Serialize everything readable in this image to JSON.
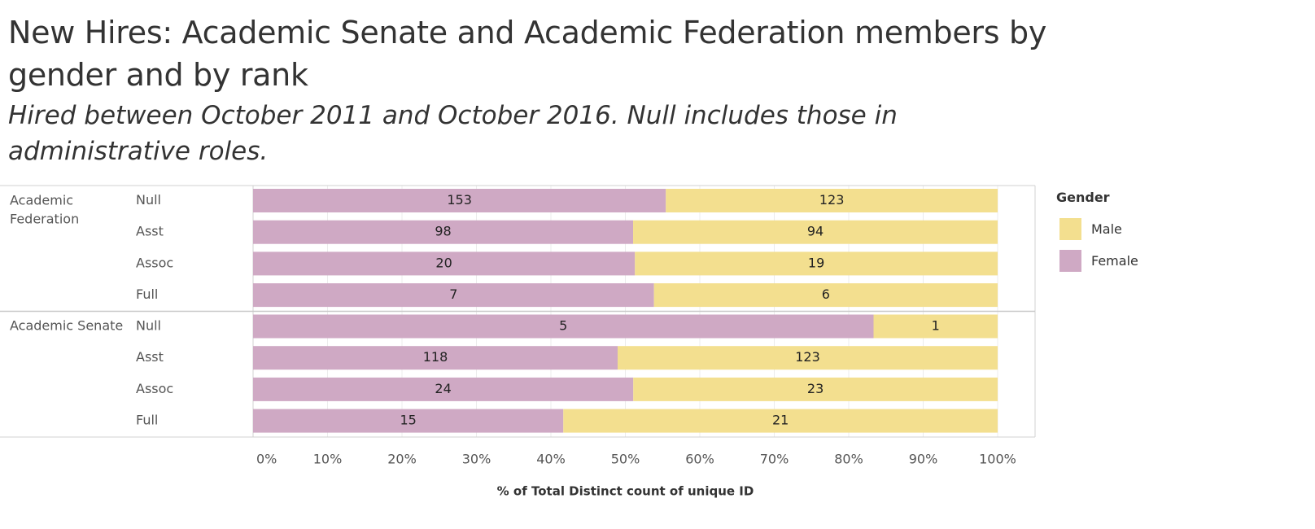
{
  "page": {
    "title": "New Hires: Academic Senate and Academic Federation members by gender and by rank",
    "subtitle": "Hired between October 2011 and October 2016. Null includes those in administrative roles."
  },
  "legend": {
    "title": "Gender",
    "items": [
      {
        "label": "Male",
        "color": "#f3df8f"
      },
      {
        "label": "Female",
        "color": "#cfa9c4"
      }
    ]
  },
  "chart_data": {
    "type": "bar",
    "orientation": "horizontal",
    "stacking": "percent",
    "xlabel": "% of Total Distinct count of unique ID",
    "xlim": [
      0,
      100
    ],
    "x_ticks": [
      "0%",
      "10%",
      "20%",
      "30%",
      "40%",
      "50%",
      "60%",
      "70%",
      "80%",
      "90%",
      "100%"
    ],
    "grid": true,
    "legend_position": "right",
    "series": [
      {
        "name": "Female",
        "color": "#cfa9c4"
      },
      {
        "name": "Male",
        "color": "#f3df8f"
      }
    ],
    "groups": [
      {
        "name": "Academic Federation",
        "rows": [
          {
            "rank": "Null",
            "female": 153,
            "male": 123
          },
          {
            "rank": "Asst",
            "female": 98,
            "male": 94
          },
          {
            "rank": "Assoc",
            "female": 20,
            "male": 19
          },
          {
            "rank": "Full",
            "female": 7,
            "male": 6
          }
        ]
      },
      {
        "name": "Academic Senate",
        "rows": [
          {
            "rank": "Null",
            "female": 5,
            "male": 1
          },
          {
            "rank": "Asst",
            "female": 118,
            "male": 123
          },
          {
            "rank": "Assoc",
            "female": 24,
            "male": 23
          },
          {
            "rank": "Full",
            "female": 15,
            "male": 21
          }
        ]
      }
    ]
  }
}
